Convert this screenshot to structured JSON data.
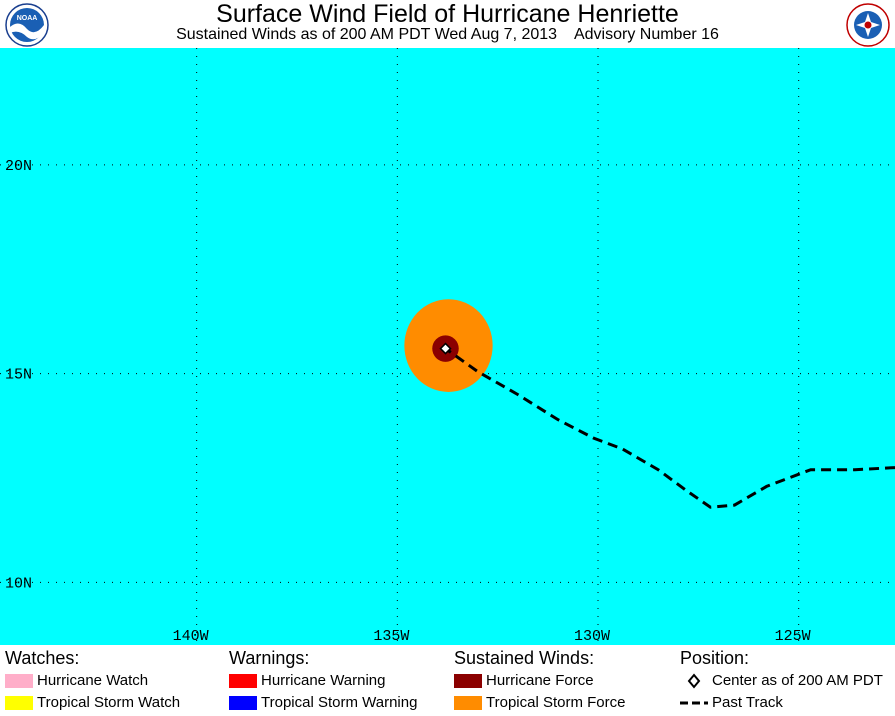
{
  "header": {
    "title": "Surface Wind Field of Hurricane Henriette",
    "subtitle": "Sustained Winds as of 200 AM PDT Wed Aug 7, 2013    Advisory Number 16",
    "logo_left": "NOAA",
    "logo_right": "National Weather Service"
  },
  "map": {
    "ocean_color": "#00ffff",
    "lon_range": [
      -144.9,
      -122.6
    ],
    "lat_range": [
      8.5,
      22.8
    ],
    "longitude_labels": [
      {
        "lon": -140,
        "text": "140W"
      },
      {
        "lon": -135,
        "text": "135W"
      },
      {
        "lon": -130,
        "text": "130W"
      },
      {
        "lon": -125,
        "text": "125W"
      }
    ],
    "latitude_labels": [
      {
        "lat": 20,
        "text": "20N"
      },
      {
        "lat": 15,
        "text": "15N"
      },
      {
        "lat": 10,
        "text": "10N"
      }
    ],
    "storm_center": {
      "lon": -133.8,
      "lat": 15.6
    },
    "tropical_storm_force_radius_deg": 1.1,
    "hurricane_force_radius_deg": 0.33,
    "past_track": [
      [
        -122.6,
        12.75
      ],
      [
        -123.6,
        12.7
      ],
      [
        -124.7,
        12.7
      ],
      [
        -125.8,
        12.3
      ],
      [
        -126.6,
        11.85
      ],
      [
        -127.2,
        11.8
      ],
      [
        -127.8,
        12.2
      ],
      [
        -128.5,
        12.7
      ],
      [
        -129.4,
        13.2
      ],
      [
        -130.1,
        13.45
      ],
      [
        -131.0,
        13.9
      ],
      [
        -132.0,
        14.5
      ],
      [
        -133.0,
        15.05
      ],
      [
        -133.8,
        15.6
      ]
    ]
  },
  "legend": {
    "watches": {
      "heading": "Watches:",
      "items": [
        {
          "label": "Hurricane Watch",
          "color": "#ffaec9"
        },
        {
          "label": "Tropical Storm Watch",
          "color": "#ffff00"
        }
      ]
    },
    "warnings": {
      "heading": "Warnings:",
      "items": [
        {
          "label": "Hurricane Warning",
          "color": "#ff0000"
        },
        {
          "label": "Tropical Storm Warning",
          "color": "#0000ff"
        }
      ]
    },
    "winds": {
      "heading": "Sustained Winds:",
      "items": [
        {
          "label": "Hurricane Force",
          "color": "#8b0000"
        },
        {
          "label": "Tropical Storm Force",
          "color": "#ff8c00"
        }
      ]
    },
    "position": {
      "heading": "Position:",
      "items": [
        {
          "label": "Center as of 200 AM PDT",
          "icon": "diamond-icon"
        },
        {
          "label": "Past Track",
          "icon": "dashed-line-icon"
        }
      ]
    }
  }
}
